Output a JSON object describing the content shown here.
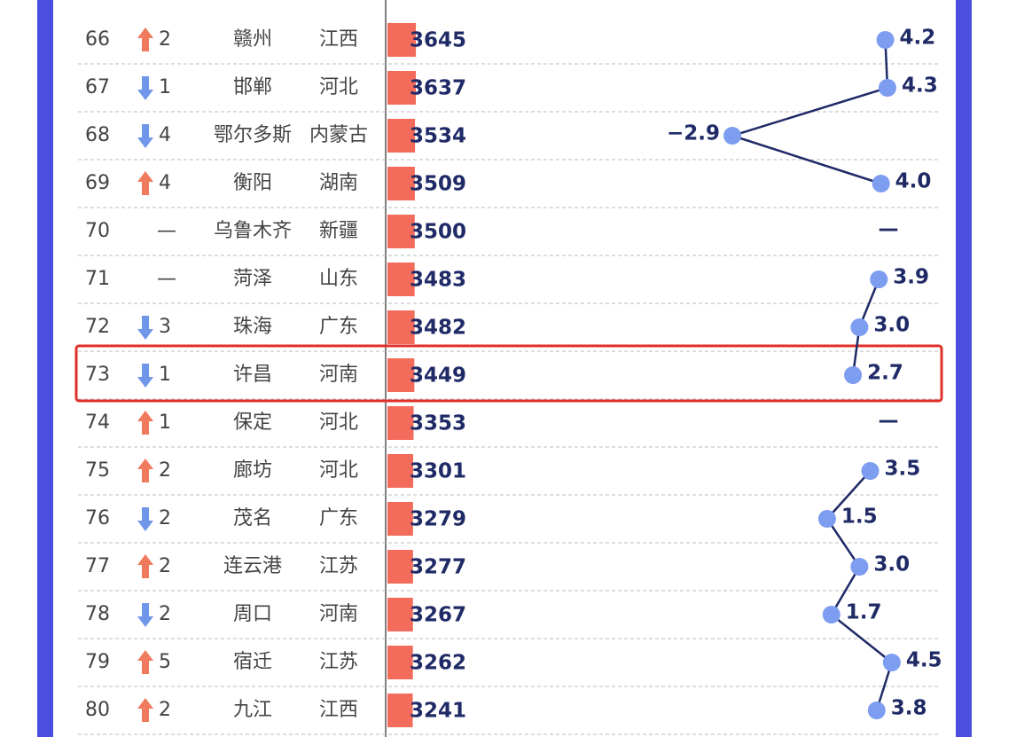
{
  "table": {
    "rows": [
      {
        "rank": "66",
        "trend": "up",
        "change": "2",
        "city": "赣州",
        "province": "江西",
        "gdp": 3645,
        "growth": 4.2
      },
      {
        "rank": "67",
        "trend": "down",
        "change": "1",
        "city": "邯郸",
        "province": "河北",
        "gdp": 3637,
        "growth": 4.3
      },
      {
        "rank": "68",
        "trend": "down",
        "change": "4",
        "city": "鄂尔多斯",
        "province": "内蒙古",
        "gdp": 3534,
        "growth": -2.9,
        "growth_label": "−2.9"
      },
      {
        "rank": "69",
        "trend": "up",
        "change": "4",
        "city": "衡阳",
        "province": "湖南",
        "gdp": 3509,
        "growth": 4.0,
        "growth_label": "4.0"
      },
      {
        "rank": "70",
        "trend": "none",
        "change": "—",
        "city": "乌鲁木齐",
        "province": "新疆",
        "gdp": 3500,
        "growth": "—"
      },
      {
        "rank": "71",
        "trend": "none",
        "change": "—",
        "city": "菏泽",
        "province": "山东",
        "gdp": 3483,
        "growth": 3.9
      },
      {
        "rank": "72",
        "trend": "down",
        "change": "3",
        "city": "珠海",
        "province": "广东",
        "gdp": 3482,
        "growth": 3.0,
        "growth_label": "3.0"
      },
      {
        "rank": "73",
        "trend": "down",
        "change": "1",
        "city": "许昌",
        "province": "河南",
        "gdp": 3449,
        "growth": 2.7,
        "highlight": true
      },
      {
        "rank": "74",
        "trend": "up",
        "change": "1",
        "city": "保定",
        "province": "河北",
        "gdp": 3353,
        "growth": "—"
      },
      {
        "rank": "75",
        "trend": "up",
        "change": "2",
        "city": "廊坊",
        "province": "河北",
        "gdp": 3301,
        "growth": 3.5
      },
      {
        "rank": "76",
        "trend": "down",
        "change": "2",
        "city": "茂名",
        "province": "广东",
        "gdp": 3279,
        "growth": 1.5
      },
      {
        "rank": "77",
        "trend": "up",
        "change": "2",
        "city": "连云港",
        "province": "江苏",
        "gdp": 3277,
        "growth": 3.0,
        "growth_label": "3.0"
      },
      {
        "rank": "78",
        "trend": "down",
        "change": "2",
        "city": "周口",
        "province": "河南",
        "gdp": 3267,
        "growth": 1.7
      },
      {
        "rank": "79",
        "trend": "up",
        "change": "5",
        "city": "宿迁",
        "province": "江苏",
        "gdp": 3262,
        "growth": 4.5
      },
      {
        "rank": "80",
        "trend": "up",
        "change": "2",
        "city": "九江",
        "province": "江西",
        "gdp": 3241,
        "growth": 3.8
      }
    ],
    "colors": {
      "up": "#f07a5e",
      "down": "#6f96e8",
      "bar": "#f26b5b",
      "line": "#1f2a66",
      "dot": "#7d9df0",
      "frame": "#4a4fe0",
      "highlight": "#e0302a"
    }
  }
}
